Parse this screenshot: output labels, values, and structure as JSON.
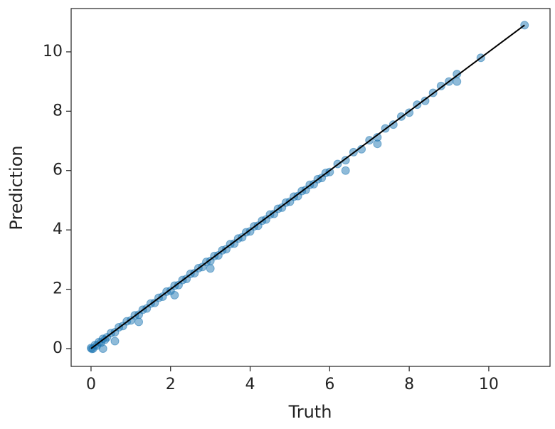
{
  "chart_data": {
    "type": "scatter",
    "x_label": "Truth",
    "y_label": "Prediction",
    "xlim": [
      -0.5,
      11.54
    ],
    "ylim": [
      -0.6,
      11.46
    ],
    "xticks": [
      0,
      2,
      4,
      6,
      8,
      10
    ],
    "yticks": [
      0,
      2,
      4,
      6,
      8,
      10
    ],
    "series": [
      {
        "color": "#1f77b4",
        "x": [
          0,
          0.02,
          0.05,
          0.1,
          0.15,
          0.2,
          0.25,
          0.3,
          0.35,
          0.4,
          0.5,
          0.6,
          0.7,
          0.8,
          0.9,
          1.0,
          1.1,
          1.2,
          1.3,
          1.4,
          1.5,
          1.6,
          1.7,
          1.8,
          1.9,
          2.0,
          2.1,
          2.2,
          2.3,
          2.4,
          2.5,
          2.6,
          2.7,
          2.8,
          2.9,
          3.0,
          3.1,
          3.2,
          3.3,
          3.4,
          3.5,
          3.6,
          3.7,
          3.8,
          3.9,
          4.0,
          4.1,
          4.2,
          4.3,
          4.4,
          4.5,
          4.6,
          4.7,
          4.8,
          4.9,
          5.0,
          5.1,
          5.2,
          5.3,
          5.4,
          5.5,
          5.6,
          5.7,
          5.8,
          5.9,
          6.0,
          6.2,
          6.4,
          6.6,
          6.8,
          7.0,
          7.2,
          7.4,
          7.6,
          7.8,
          8.0,
          8.2,
          8.4,
          8.6,
          8.8,
          9.0,
          9.2,
          9.8,
          10.9,
          0.3,
          0.6,
          1.2,
          2.1,
          3.0,
          6.4,
          7.2,
          9.2
        ],
        "values": [
          0.02,
          -0.01,
          0.0,
          0.12,
          0.1,
          0.22,
          0.2,
          0.33,
          0.3,
          0.38,
          0.52,
          0.55,
          0.72,
          0.76,
          0.92,
          0.95,
          1.12,
          1.14,
          1.31,
          1.35,
          1.52,
          1.54,
          1.71,
          1.75,
          1.92,
          1.95,
          2.12,
          2.14,
          2.31,
          2.35,
          2.52,
          2.54,
          2.71,
          2.75,
          2.92,
          2.95,
          3.12,
          3.14,
          3.31,
          3.35,
          3.52,
          3.54,
          3.71,
          3.75,
          3.92,
          3.95,
          4.12,
          4.14,
          4.31,
          4.35,
          4.52,
          4.54,
          4.71,
          4.75,
          4.92,
          4.95,
          5.12,
          5.14,
          5.31,
          5.35,
          5.52,
          5.54,
          5.71,
          5.75,
          5.92,
          5.95,
          6.22,
          6.35,
          6.62,
          6.72,
          7.02,
          7.12,
          7.42,
          7.55,
          7.82,
          7.95,
          8.22,
          8.35,
          8.62,
          8.85,
          9.0,
          9.25,
          9.8,
          10.9,
          0.0,
          0.25,
          0.9,
          1.8,
          2.7,
          6.0,
          6.9,
          9.0
        ]
      }
    ],
    "reference_line": {
      "color": "#000000",
      "x": [
        0,
        10.9
      ],
      "values": [
        0,
        10.9
      ]
    }
  }
}
